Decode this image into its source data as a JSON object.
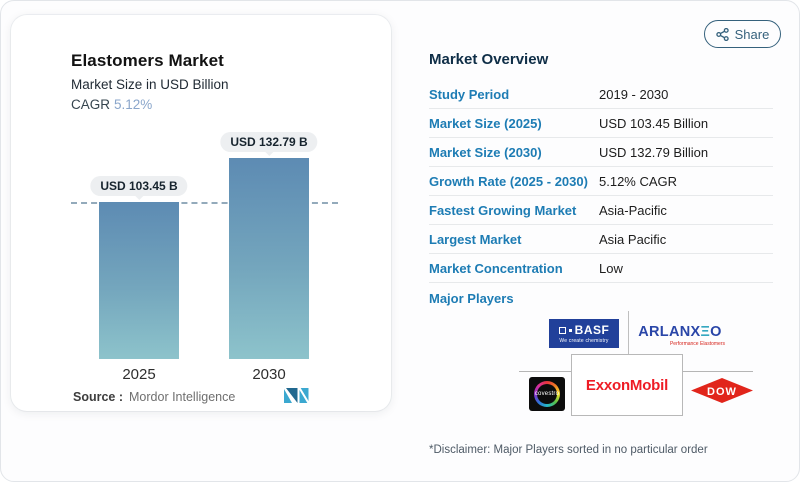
{
  "page": {
    "share_label": "Share"
  },
  "chart_card": {
    "title": "Elastomers Market",
    "subtitle": "Market Size in USD Billion",
    "cagr_label": "CAGR",
    "cagr_value": "5.12%",
    "source_label": "Source :",
    "source_value": "Mordor Intelligence"
  },
  "chart_data": {
    "type": "bar",
    "title": "Elastomers Market",
    "subtitle": "Market Size in USD Billion",
    "categories": [
      "2025",
      "2030"
    ],
    "values": [
      103.45,
      132.79
    ],
    "bar_labels": [
      "USD 103.45 B",
      "USD 132.79 B"
    ],
    "unit": "USD Billion",
    "cagr": "5.12%",
    "reference_line_value": 103.45,
    "ylim": [
      0,
      132.79
    ],
    "grid": false,
    "legend": "none",
    "colors": {
      "bar_gradient_top": "#5d8bb3",
      "bar_gradient_bottom": "#8dc3cb",
      "reference_line": "#93aabb"
    }
  },
  "overview": {
    "heading": "Market Overview",
    "rows": [
      {
        "label": "Study Period",
        "value": "2019 - 2030"
      },
      {
        "label": "Market Size (2025)",
        "value": "USD 103.45 Billion"
      },
      {
        "label": "Market Size (2030)",
        "value": "USD 132.79 Billion"
      },
      {
        "label": "Growth Rate (2025 - 2030)",
        "value": "5.12% CAGR"
      },
      {
        "label": "Fastest Growing Market",
        "value": "Asia-Pacific"
      },
      {
        "label": "Largest Market",
        "value": "Asia Pacific"
      },
      {
        "label": "Market Concentration",
        "value": "Low"
      }
    ],
    "major_players_label": "Major Players",
    "disclaimer": "*Disclaimer: Major Players sorted in no particular order"
  },
  "logos": {
    "basf": {
      "name": "BASF",
      "tagline": "We create chemistry"
    },
    "arlanxeo": {
      "part1": "ARLANX",
      "e": "Ξ",
      "part2": "O",
      "tagline": "Performance Elastomers"
    },
    "covestro": {
      "name": "covestro"
    },
    "exxon": {
      "name": "ExxonMobil"
    },
    "dow": {
      "name": "DOW"
    }
  },
  "colors": {
    "row_label_blue": "#1d7cb4",
    "heading_navy": "#0f2e47",
    "share_teal": "#35617c",
    "cagr_blue": "#8aa6cb",
    "basf_blue": "#21409a",
    "arlanxeo_blue": "#2a46a8",
    "exxon_red": "#ee1c25",
    "dow_red": "#e1251b"
  }
}
